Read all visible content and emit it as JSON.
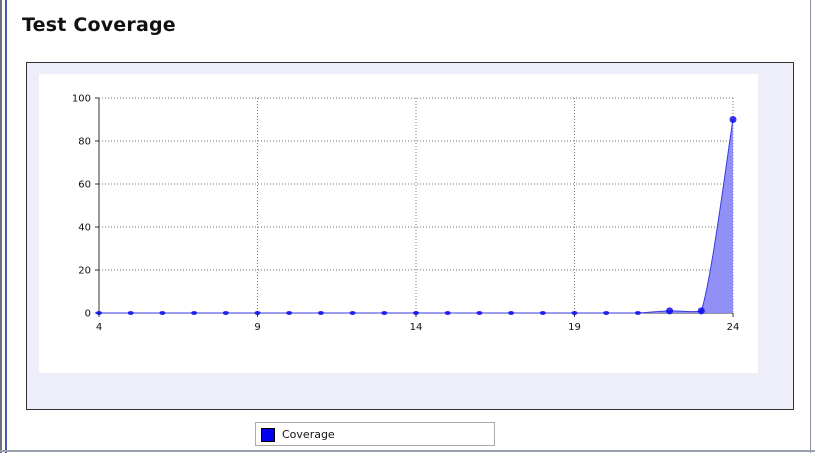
{
  "page": {
    "title": "Test Coverage"
  },
  "chart_data": {
    "type": "area",
    "title": "",
    "xlabel": "",
    "ylabel": "",
    "xlim": [
      4,
      24
    ],
    "ylim": [
      0,
      100
    ],
    "x_ticks": [
      4,
      9,
      14,
      19,
      24
    ],
    "y_ticks": [
      0,
      20,
      40,
      60,
      80,
      100
    ],
    "grid": true,
    "legend_position": "bottom-center",
    "series": [
      {
        "name": "Coverage",
        "color": "#0000ee",
        "fill_color": "#8a8af5",
        "x": [
          4,
          5,
          6,
          7,
          8,
          9,
          10,
          11,
          12,
          13,
          14,
          15,
          16,
          17,
          18,
          19,
          20,
          21,
          22,
          23,
          24
        ],
        "values": [
          0,
          0,
          0,
          0,
          0,
          0,
          0,
          0,
          0,
          0,
          0,
          0,
          0,
          0,
          0,
          0,
          0,
          0,
          1,
          1,
          90
        ]
      }
    ]
  }
}
